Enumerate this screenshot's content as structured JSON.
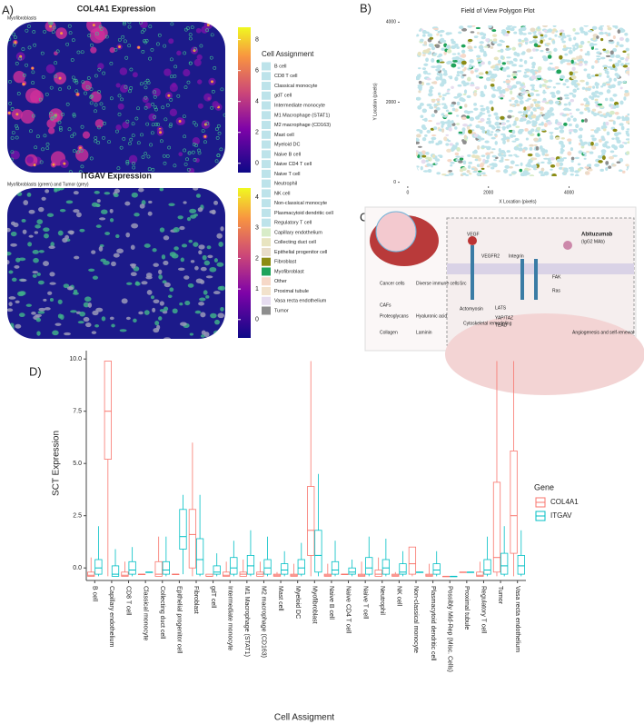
{
  "panel_labels": [
    "A)",
    "B)",
    "C)",
    "D)"
  ],
  "panel_a": {
    "map1": {
      "title": "COL4A1 Expression",
      "subtitle": "Myofibroblasts",
      "colorbar_lim": [
        -0.6,
        8.8
      ],
      "colorbar_ticks": [
        0,
        2,
        4,
        6,
        8
      ]
    },
    "map2": {
      "title": "ITGAV Expression",
      "subtitle": "Myofibroblasts (green) and Tumor (grey)",
      "colorbar_lim": [
        -0.6,
        4.3
      ],
      "colorbar_ticks": [
        0,
        1,
        2,
        3,
        4
      ]
    },
    "legend": {
      "title": "Cell Assignment",
      "items": [
        {
          "name": "B cell",
          "color": "#bde3ea"
        },
        {
          "name": "CD8 T cell",
          "color": "#bde3ea"
        },
        {
          "name": "Classical monocyte",
          "color": "#bde3ea"
        },
        {
          "name": "gdT cell",
          "color": "#bde3ea"
        },
        {
          "name": "Intermediate monocyte",
          "color": "#bde3ea"
        },
        {
          "name": "M1 Macrophage (STAT1)",
          "color": "#bde3ea"
        },
        {
          "name": "M2 macrophage (CD163)",
          "color": "#bde3ea"
        },
        {
          "name": "Mast cell",
          "color": "#bde3ea"
        },
        {
          "name": "Myeloid DC",
          "color": "#bde3ea"
        },
        {
          "name": "Naive B cell",
          "color": "#bde3ea"
        },
        {
          "name": "Naive CD4 T cell",
          "color": "#bde3ea"
        },
        {
          "name": "Naive T cell",
          "color": "#bde3ea"
        },
        {
          "name": "Neutrophil",
          "color": "#bde3ea"
        },
        {
          "name": "NK cell",
          "color": "#bde3ea"
        },
        {
          "name": "Non-classical monocyte",
          "color": "#bde3ea"
        },
        {
          "name": "Plasmacytoid dendritic cell",
          "color": "#bde3ea"
        },
        {
          "name": "Regulatory T cell",
          "color": "#bde3ea"
        },
        {
          "name": "Capillary endothelium",
          "color": "#d8ecc8"
        },
        {
          "name": "Collecting duct cell",
          "color": "#e8e4c0"
        },
        {
          "name": "Epithelial progenitor cell",
          "color": "#e8dcc8"
        },
        {
          "name": "Fibroblast",
          "color": "#8c8c14"
        },
        {
          "name": "Myofibroblast",
          "color": "#1fa35a"
        },
        {
          "name": "Other",
          "color": "#f6d8c8"
        },
        {
          "name": "Proximal tubule",
          "color": "#f2e2cc"
        },
        {
          "name": "Vasa recta endothelium",
          "color": "#e6dcef"
        },
        {
          "name": "Tumor",
          "color": "#8e8e8e"
        }
      ]
    }
  },
  "panel_b": {
    "title": "Field of View Polygon Plot",
    "xlabel": "X Location (pixels)",
    "ylabel": "Y Location (pixels)",
    "xlim": [
      -200,
      5700
    ],
    "ylim": [
      -100,
      4100
    ],
    "xticks": [
      0,
      2000,
      4000
    ],
    "yticks": [
      0,
      2000,
      4000
    ]
  },
  "panel_c": {
    "labels": [
      "VEGF",
      "VEGFR2",
      "Integrin",
      "Abituzumab",
      "(IgG2 MAb)",
      "Cancer cells",
      "Diverse immune cells",
      "CAFs",
      "Proteoglycans",
      "Hyaluronic acid",
      "Collagen",
      "Laminin",
      "Src",
      "Ras",
      "FAK",
      "Actomyosin",
      "LATS",
      "YAP/TAZ",
      "TEAD",
      "Cytoskeletal remodeling",
      "Angiogenesis and self-renewal"
    ]
  },
  "chart_data": {
    "type": "box",
    "xlabel": "Cell Assigment",
    "ylabel": "SCT Expression",
    "legend_title": "Gene",
    "ylim": [
      -0.6,
      10.4
    ],
    "yticks": [
      {
        "value": 0,
        "label": "0.0"
      },
      {
        "value": 2.5,
        "label": "2.5"
      },
      {
        "value": 5,
        "label": "5.0"
      },
      {
        "value": 7.5,
        "label": "7.5"
      },
      {
        "value": 10,
        "label": "10.0"
      }
    ],
    "categories": [
      "B cell",
      "Capillary endothelium",
      "CD8 T cell",
      "Classical monocyte",
      "Collecting duct cell",
      "Epithelial progenitor cell",
      "Fibroblast",
      "gdT cell",
      "Intermediate monocyte",
      "M1 Macrophage (STAT1)",
      "M2 macrophage (CD163)",
      "Mast cell",
      "Myeloid DC",
      "Myofibroblast",
      "Naive B cell",
      "Naive CD4 T cell",
      "Naive T cell",
      "Neutrophil",
      "NK cell",
      "Non-classical monocyte",
      "Plasmacytoid dendritic cell",
      "Possibly Mid-Rep (Misc. Cells)",
      "Proximal tubule",
      "Regulatory T cell",
      "Tumor",
      "Vasa recta endothelium"
    ],
    "series": [
      {
        "name": "COL4A1",
        "color": "#f8766d",
        "low": [
          -0.4,
          -0.4,
          -0.4,
          -0.3,
          -0.4,
          -0.3,
          -0.4,
          -0.4,
          -0.4,
          -0.4,
          -0.4,
          -0.4,
          -0.4,
          -0.4,
          -0.4,
          -0.3,
          -0.4,
          -0.4,
          -0.4,
          -0.4,
          -0.4,
          -0.4,
          -0.2,
          -0.4,
          -0.4,
          -0.4
        ],
        "q1": [
          -0.4,
          5.2,
          -0.4,
          -0.3,
          -0.4,
          -0.3,
          0.0,
          -0.4,
          -0.4,
          -0.4,
          -0.4,
          -0.4,
          -0.4,
          0.6,
          -0.4,
          -0.3,
          -0.4,
          -0.4,
          -0.4,
          -0.3,
          -0.4,
          -0.4,
          -0.2,
          -0.4,
          -0.2,
          0.7
        ],
        "median": [
          -0.35,
          7.5,
          -0.35,
          -0.3,
          -0.3,
          -0.3,
          1.6,
          -0.4,
          -0.35,
          -0.3,
          -0.3,
          -0.35,
          -0.35,
          1.8,
          -0.35,
          -0.3,
          -0.35,
          -0.3,
          -0.35,
          0.2,
          -0.35,
          -0.4,
          -0.2,
          -0.35,
          0.5,
          2.5
        ],
        "q3": [
          -0.2,
          9.9,
          -0.2,
          -0.3,
          0.3,
          -0.3,
          2.8,
          -0.3,
          -0.2,
          -0.2,
          -0.2,
          -0.3,
          -0.3,
          3.9,
          -0.3,
          -0.3,
          -0.3,
          -0.1,
          -0.3,
          1.0,
          -0.3,
          -0.4,
          -0.2,
          -0.2,
          4.1,
          5.6
        ],
        "high": [
          0.5,
          9.9,
          0.3,
          -0.3,
          1.5,
          -0.3,
          6.0,
          -0.3,
          0.3,
          0.4,
          0.3,
          -0.2,
          0.2,
          9.9,
          0.2,
          -0.3,
          0.3,
          0.5,
          -0.2,
          1.0,
          0.2,
          -0.4,
          -0.2,
          0.3,
          9.9,
          9.9
        ]
      },
      {
        "name": "ITGAV",
        "color": "#00bfc4",
        "low": [
          -0.4,
          -0.4,
          -0.4,
          -0.2,
          -0.4,
          -0.3,
          -0.4,
          -0.4,
          -0.4,
          -0.4,
          -0.4,
          -0.4,
          -0.4,
          -0.4,
          -0.4,
          -0.4,
          -0.4,
          -0.4,
          -0.4,
          -0.2,
          -0.4,
          -0.4,
          -0.2,
          -0.4,
          -0.4,
          -0.4
        ],
        "q1": [
          -0.3,
          -0.4,
          -0.3,
          -0.2,
          -0.3,
          0.9,
          -0.3,
          -0.3,
          -0.3,
          -0.3,
          -0.3,
          -0.3,
          -0.3,
          -0.2,
          -0.3,
          -0.3,
          -0.3,
          -0.3,
          -0.3,
          -0.2,
          -0.3,
          -0.4,
          -0.2,
          -0.3,
          -0.3,
          -0.3
        ],
        "median": [
          0.0,
          -0.3,
          -0.1,
          -0.2,
          -0.1,
          1.5,
          0.4,
          -0.2,
          0.0,
          0.1,
          0.0,
          -0.1,
          0.0,
          0.6,
          -0.1,
          -0.2,
          0.0,
          0.0,
          -0.2,
          -0.2,
          -0.1,
          -0.4,
          -0.2,
          -0.1,
          0.1,
          0.1
        ],
        "q3": [
          0.4,
          0.1,
          0.3,
          -0.2,
          0.3,
          2.8,
          1.4,
          0.1,
          0.5,
          0.6,
          0.4,
          0.2,
          0.4,
          1.8,
          0.3,
          0.0,
          0.5,
          0.4,
          0.2,
          -0.2,
          0.2,
          -0.4,
          -0.2,
          0.4,
          0.7,
          0.6
        ],
        "high": [
          2.0,
          0.9,
          1.0,
          -0.2,
          1.5,
          3.5,
          3.5,
          0.7,
          1.3,
          1.8,
          1.5,
          0.8,
          1.2,
          4.5,
          1.3,
          0.4,
          1.5,
          1.4,
          0.8,
          -0.2,
          0.8,
          -0.4,
          -0.2,
          1.5,
          2.0,
          1.8
        ]
      }
    ]
  }
}
